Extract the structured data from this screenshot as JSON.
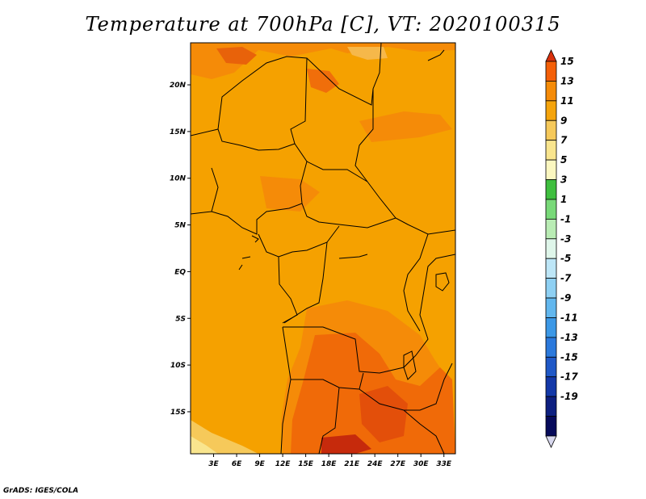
{
  "title": "Temperature at 700hPa [C], VT: 2020100315",
  "credit": "GrADS: IGES/COLA",
  "map": {
    "x_ticks": [
      "3E",
      "6E",
      "9E",
      "12E",
      "15E",
      "18E",
      "21E",
      "24E",
      "27E",
      "30E",
      "33E"
    ],
    "y_ticks": [
      "20N",
      "15N",
      "10N",
      "5N",
      "EQ",
      "5S",
      "10S",
      "15S"
    ],
    "background_color": "#f5a100",
    "extent": {
      "lon": [
        0,
        34.5
      ],
      "lat": [
        -19.5,
        24.5
      ]
    }
  },
  "colorbar": {
    "labels": [
      "15",
      "13",
      "11",
      "9",
      "7",
      "5",
      "3",
      "1",
      "-1",
      "-3",
      "-5",
      "-7",
      "-9",
      "-11",
      "-13",
      "-15",
      "-17",
      "-19"
    ],
    "colors": [
      "#d9300c",
      "#f45f08",
      "#f58b08",
      "#f5a40c",
      "#f6c95a",
      "#f9e58e",
      "#fbf7c0",
      "#3fbf3f",
      "#78d978",
      "#b9ecb4",
      "#dff6ea",
      "#bde6f7",
      "#8ed0f3",
      "#62b7ee",
      "#3c98e6",
      "#2b79dc",
      "#1f58c7",
      "#1338a8",
      "#0d1f80",
      "#060a5a",
      "#d8d8ee"
    ]
  }
}
